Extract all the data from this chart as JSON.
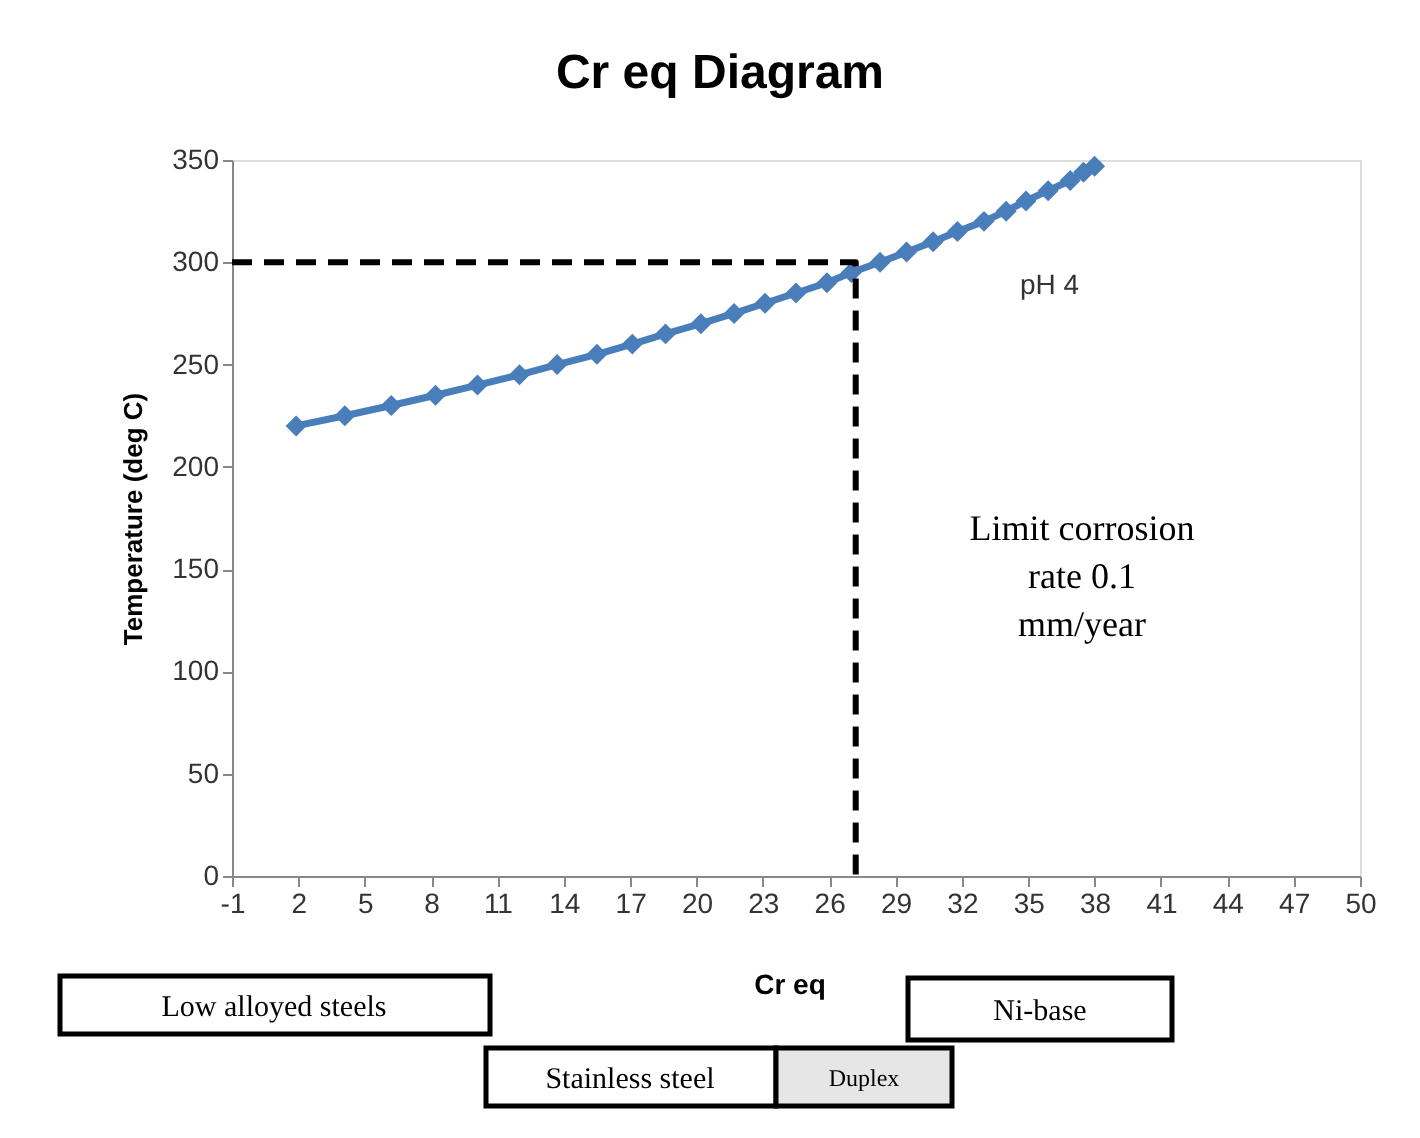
{
  "chart_data": {
    "type": "line",
    "title": "Cr eq Diagram",
    "xlabel": "Cr eq",
    "ylabel": "Temperature (deg C)",
    "xlim": [
      -1,
      50
    ],
    "xticks": [
      -1,
      2,
      5,
      8,
      11,
      14,
      17,
      20,
      23,
      26,
      29,
      32,
      35,
      38,
      41,
      44,
      47,
      50
    ],
    "ylim": [
      0,
      350
    ],
    "yticks": [
      0,
      50,
      100,
      150,
      200,
      250,
      300,
      350
    ],
    "grid": false,
    "legend": false,
    "series": [
      {
        "name": "pH 4",
        "color": "#4a7ebb",
        "marker": "diamond",
        "line_style": "solid",
        "x": [
          1.9,
          4.1,
          6.2,
          8.2,
          10.1,
          12.0,
          13.7,
          15.5,
          17.1,
          18.6,
          20.2,
          21.7,
          23.1,
          24.5,
          25.9,
          27.0,
          28.3,
          29.5,
          30.7,
          31.8,
          33.0,
          34.0,
          34.9,
          35.9,
          36.9,
          37.5,
          38.0
        ],
        "values": [
          220,
          225,
          230,
          235,
          240,
          245,
          250,
          255,
          260,
          265,
          270,
          275,
          280,
          285,
          290,
          295,
          300,
          305,
          310,
          315,
          320,
          325,
          330,
          335,
          340,
          344,
          347
        ]
      },
      {
        "color": "#000000",
        "marker": "none",
        "line_style": "dashed",
        "x": [
          -1,
          27.2,
          27.2
        ],
        "values": [
          300,
          300,
          0
        ]
      }
    ],
    "annotations": [
      "Limit corrosion\nrate 0.1\nmm/year",
      "Low alloyed  steels",
      "Stainless steel",
      "Duplex",
      "Ni-base"
    ]
  }
}
